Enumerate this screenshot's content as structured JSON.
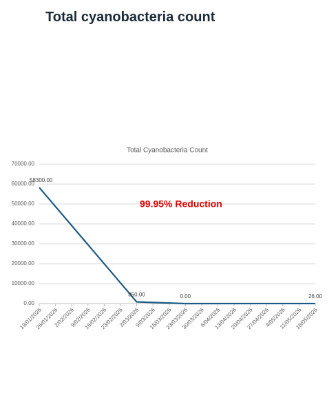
{
  "header": {
    "title": "Total cyanobacteria count"
  },
  "chart_data": {
    "type": "line",
    "title": "Total Cyanobacteria Count",
    "annotation": "99.95% Reduction",
    "annotation_color": "#e00000",
    "xticks": [
      "19/01/2026",
      "26/01/2026",
      "2/02/2026",
      "9/02/2026",
      "16/02/2026",
      "23/02/2026",
      "2/03/2026",
      "9/03/2026",
      "16/03/2026",
      "23/03/2026",
      "30/03/2026",
      "6/04/2026",
      "13/04/2026",
      "20/04/2026",
      "27/04/2026",
      "4/05/2026",
      "11/05/2026",
      "18/05/2026"
    ],
    "x": [
      "19/01/2026",
      "2/03/2026",
      "23/03/2026",
      "18/05/2026"
    ],
    "series": [
      {
        "name": "Total Cyanobacteria Count",
        "color": "#1d5a85",
        "values": [
          58300,
          850,
          0,
          26
        ],
        "value_labels": [
          "58300.00",
          "850.00",
          "0.00",
          "26.00"
        ]
      }
    ],
    "ylim": [
      0,
      70000
    ],
    "yticks": [
      {
        "value": 0,
        "label": "0.00"
      },
      {
        "value": 10000,
        "label": "10000.00"
      },
      {
        "value": 20000,
        "label": "20000.00"
      },
      {
        "value": 30000,
        "label": "30000.00"
      },
      {
        "value": 40000,
        "label": "40000.00"
      },
      {
        "value": 50000,
        "label": "50000.00"
      },
      {
        "value": 60000,
        "label": "60000.00"
      },
      {
        "value": 70000,
        "label": "70000.00"
      }
    ],
    "grid": true
  }
}
